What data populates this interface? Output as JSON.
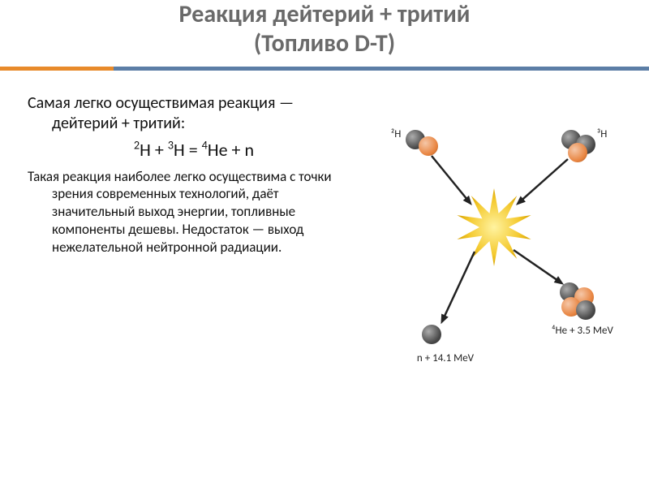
{
  "title": {
    "line1": "Реакция дейтерий + тритий",
    "line2": "(Топливо D-T)"
  },
  "divider": {
    "orange": "#e88a2a",
    "blue": "#5c7ea6",
    "orange_width": 140
  },
  "body": {
    "p1": "Самая легко осуществимая реакция — дейтерий + тритий:",
    "eq_html": "<sup>2</sup>H + <sup>3</sup>H = <sup>4</sup>He + n",
    "p2": "Такая реакция наиболее легко осуществима с точки зрения современных технологий, даёт значительный выход энергии, топливные компоненты дешевы. Недостаток — выход нежелательной нейтронной радиации."
  },
  "diagram": {
    "colors": {
      "proton": "#e8833e",
      "neutron": "#484848",
      "spark": "#f4c92e",
      "arrow": "#222222"
    },
    "labels": {
      "d": "²H",
      "t": "³H",
      "he": "⁴He + 3.5 MeV",
      "n": "n + 14.1 MeV"
    },
    "label_fontsize": 13,
    "ball_r": 12
  }
}
